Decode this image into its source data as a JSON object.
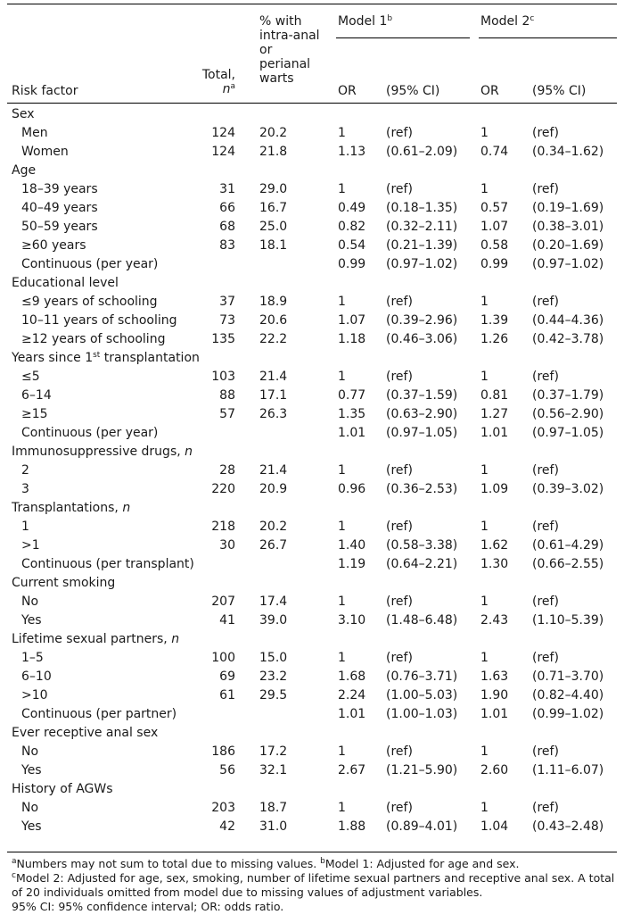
{
  "header": {
    "risk_factor": "Risk factor",
    "total_line1": "Total,",
    "total_n": "n",
    "total_sup": "a",
    "pct_lines": [
      "% with",
      "intra-anal",
      "or",
      "perianal",
      "warts"
    ],
    "model1": "Model 1",
    "model1_sup": "b",
    "model2": "Model 2",
    "model2_sup": "c",
    "or1": "OR",
    "ci1": "(95% CI)",
    "or2": "OR",
    "ci2": "(95% CI)"
  },
  "rows": [
    {
      "type": "cat",
      "label": "Sex"
    },
    {
      "type": "sub",
      "label": "Men",
      "total": "124",
      "pct": "20.2",
      "or1": "1",
      "ci1": "(ref)",
      "or2": "1",
      "ci2": "(ref)"
    },
    {
      "type": "sub",
      "label": "Women",
      "total": "124",
      "pct": "21.8",
      "or1": "1.13",
      "ci1": "(0.61–2.09)",
      "or2": "0.74",
      "ci2": "(0.34–1.62)"
    },
    {
      "type": "cat",
      "label": "Age"
    },
    {
      "type": "sub",
      "label": "18–39 years",
      "total": "31",
      "pct": "29.0",
      "or1": "1",
      "ci1": "(ref)",
      "or2": "1",
      "ci2": "(ref)"
    },
    {
      "type": "sub",
      "label": "40–49 years",
      "total": "66",
      "pct": "16.7",
      "or1": "0.49",
      "ci1": "(0.18–1.35)",
      "or2": "0.57",
      "ci2": "(0.19–1.69)"
    },
    {
      "type": "sub",
      "label": "50–59 years",
      "total": "68",
      "pct": "25.0",
      "or1": "0.82",
      "ci1": "(0.32–2.11)",
      "or2": "1.07",
      "ci2": "(0.38–3.01)"
    },
    {
      "type": "sub",
      "label": "≥60 years",
      "total": "83",
      "pct": "18.1",
      "or1": "0.54",
      "ci1": "(0.21–1.39)",
      "or2": "0.58",
      "ci2": "(0.20–1.69)"
    },
    {
      "type": "sub",
      "label": "Continuous (per year)",
      "total": "",
      "pct": "",
      "or1": "0.99",
      "ci1": "(0.97–1.02)",
      "or2": "0.99",
      "ci2": "(0.97–1.02)"
    },
    {
      "type": "cat",
      "label": "Educational level"
    },
    {
      "type": "sub",
      "label": "≤9 years of schooling",
      "total": "37",
      "pct": "18.9",
      "or1": "1",
      "ci1": "(ref)",
      "or2": "1",
      "ci2": "(ref)"
    },
    {
      "type": "sub",
      "label": "10–11 years of schooling",
      "total": "73",
      "pct": "20.6",
      "or1": "1.07",
      "ci1": "(0.39–2.96)",
      "or2": "1.39",
      "ci2": "(0.44–4.36)"
    },
    {
      "type": "sub",
      "label": "≥12 years of schooling",
      "total": "135",
      "pct": "22.2",
      "or1": "1.18",
      "ci1": "(0.46–3.06)",
      "or2": "1.26",
      "ci2": "(0.42–3.78)"
    },
    {
      "type": "cat",
      "label": "Years since 1",
      "label_sup": "st",
      "label_tail": " transplantation"
    },
    {
      "type": "sub",
      "label": "≤5",
      "total": "103",
      "pct": "21.4",
      "or1": "1",
      "ci1": "(ref)",
      "or2": "1",
      "ci2": "(ref)"
    },
    {
      "type": "sub",
      "label": "6–14",
      "total": "88",
      "pct": "17.1",
      "or1": "0.77",
      "ci1": "(0.37–1.59)",
      "or2": "0.81",
      "ci2": "(0.37–1.79)"
    },
    {
      "type": "sub",
      "label": "≥15",
      "total": "57",
      "pct": "26.3",
      "or1": "1.35",
      "ci1": "(0.63–2.90)",
      "or2": "1.27",
      "ci2": "(0.56–2.90)"
    },
    {
      "type": "sub",
      "label": "Continuous (per year)",
      "total": "",
      "pct": "",
      "or1": "1.01",
      "ci1": "(0.97–1.05)",
      "or2": "1.01",
      "ci2": "(0.97–1.05)"
    },
    {
      "type": "cat",
      "label": "Immunosuppressive drugs, ",
      "label_ital": "n"
    },
    {
      "type": "sub",
      "label": "2",
      "total": "28",
      "pct": "21.4",
      "or1": "1",
      "ci1": "(ref)",
      "or2": "1",
      "ci2": "(ref)"
    },
    {
      "type": "sub",
      "label": "3",
      "total": "220",
      "pct": "20.9",
      "or1": "0.96",
      "ci1": "(0.36–2.53)",
      "or2": "1.09",
      "ci2": "(0.39–3.02)"
    },
    {
      "type": "cat",
      "label": "Transplantations, ",
      "label_ital": "n"
    },
    {
      "type": "sub",
      "label": "1",
      "total": "218",
      "pct": "20.2",
      "or1": "1",
      "ci1": "(ref)",
      "or2": "1",
      "ci2": "(ref)"
    },
    {
      "type": "sub",
      "label": ">1",
      "total": "30",
      "pct": "26.7",
      "or1": "1.40",
      "ci1": "(0.58–3.38)",
      "or2": "1.62",
      "ci2": "(0.61–4.29)"
    },
    {
      "type": "sub",
      "label": "Continuous (per transplant)",
      "total": "",
      "pct": "",
      "or1": "1.19",
      "ci1": "(0.64–2.21)",
      "or2": "1.30",
      "ci2": "(0.66–2.55)"
    },
    {
      "type": "cat",
      "label": "Current smoking"
    },
    {
      "type": "sub",
      "label": "No",
      "total": "207",
      "pct": "17.4",
      "or1": "1",
      "ci1": "(ref)",
      "or2": "1",
      "ci2": "(ref)"
    },
    {
      "type": "sub",
      "label": "Yes",
      "total": "41",
      "pct": "39.0",
      "or1": "3.10",
      "ci1": "(1.48–6.48)",
      "or2": "2.43",
      "ci2": "(1.10–5.39)"
    },
    {
      "type": "cat",
      "label": "Lifetime sexual partners, ",
      "label_ital": "n"
    },
    {
      "type": "sub",
      "label": "1–5",
      "total": "100",
      "pct": "15.0",
      "or1": "1",
      "ci1": "(ref)",
      "or2": "1",
      "ci2": "(ref)"
    },
    {
      "type": "sub",
      "label": "6–10",
      "total": "69",
      "pct": "23.2",
      "or1": "1.68",
      "ci1": "(0.76–3.71)",
      "or2": "1.63",
      "ci2": "(0.71–3.70)"
    },
    {
      "type": "sub",
      "label": ">10",
      "total": "61",
      "pct": "29.5",
      "or1": "2.24",
      "ci1": "(1.00–5.03)",
      "or2": "1.90",
      "ci2": "(0.82–4.40)"
    },
    {
      "type": "sub",
      "label": "Continuous (per partner)",
      "total": "",
      "pct": "",
      "or1": "1.01",
      "ci1": "(1.00–1.03)",
      "or2": "1.01",
      "ci2": "(0.99–1.02)"
    },
    {
      "type": "cat",
      "label": "Ever receptive anal sex"
    },
    {
      "type": "sub",
      "label": "No",
      "total": "186",
      "pct": "17.2",
      "or1": "1",
      "ci1": "(ref)",
      "or2": "1",
      "ci2": "(ref)"
    },
    {
      "type": "sub",
      "label": "Yes",
      "total": "56",
      "pct": "32.1",
      "or1": "2.67",
      "ci1": "(1.21–5.90)",
      "or2": "2.60",
      "ci2": "(1.11–6.07)"
    },
    {
      "type": "cat",
      "label": "History of AGWs"
    },
    {
      "type": "sub",
      "label": "No",
      "total": "203",
      "pct": "18.7",
      "or1": "1",
      "ci1": "(ref)",
      "or2": "1",
      "ci2": "(ref)"
    },
    {
      "type": "sub",
      "label": "Yes",
      "total": "42",
      "pct": "31.0",
      "or1": "1.88",
      "ci1": "(0.89–4.01)",
      "or2": "1.04",
      "ci2": "(0.43–2.48)"
    }
  ],
  "footnotes": {
    "a_sup": "a",
    "a_text": "Numbers may not sum to total due to missing values. ",
    "b_sup": "b",
    "b_text": "Model 1: Adjusted for age and sex.",
    "c_sup": "c",
    "c_text": "Model 2: Adjusted for age, sex, smoking, number of lifetime sexual partners and receptive anal sex. A total of 20 individuals omitted from model due to missing values of adjustment variables.",
    "abbrev": "95% CI: 95% confidence interval; OR: odds ratio."
  }
}
